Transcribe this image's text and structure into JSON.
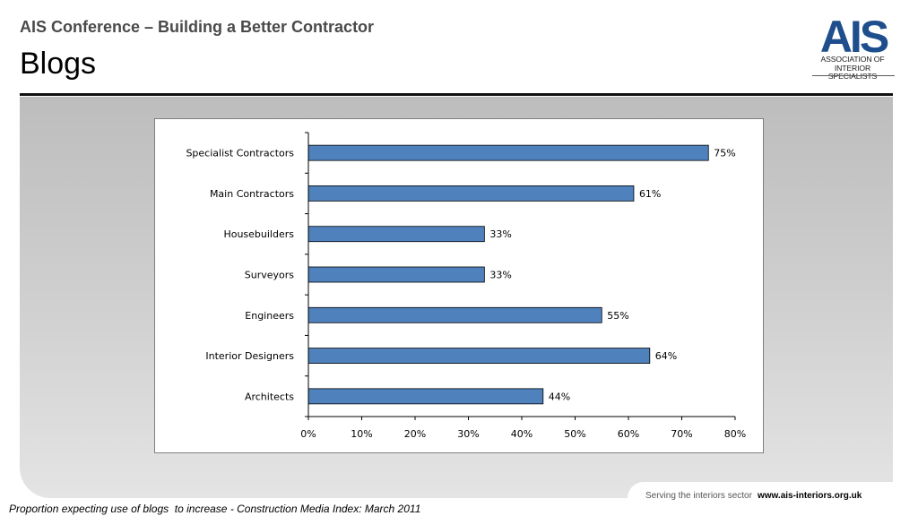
{
  "header": {
    "subtitle": "AIS Conference – Building a Better Contractor",
    "title": "Blogs"
  },
  "logo": {
    "mark": "AIS",
    "line1": "ASSOCIATION OF",
    "line2": "INTERIOR SPECIALISTS",
    "colors": {
      "blue": "#1f4e8c",
      "dark": "#1a1a1a"
    }
  },
  "footer": {
    "tagline": "Serving the interiors sector",
    "url": "www.ais-interiors.org.uk"
  },
  "caption": "Proportion expecting use of blogs  to increase - Construction Media Index: March 2011",
  "chart_data": {
    "type": "bar",
    "orientation": "horizontal",
    "categories": [
      "Specialist Contractors",
      "Main Contractors",
      "Housebuilders",
      "Surveyors",
      "Engineers",
      "Interior Designers",
      "Architects"
    ],
    "values": [
      75,
      61,
      33,
      33,
      55,
      64,
      44
    ],
    "value_labels": [
      "75%",
      "61%",
      "33%",
      "33%",
      "55%",
      "64%",
      "44%"
    ],
    "xlim": [
      0,
      80
    ],
    "xticks": [
      0,
      10,
      20,
      30,
      40,
      50,
      60,
      70,
      80
    ],
    "xtick_labels": [
      "0%",
      "10%",
      "20%",
      "30%",
      "40%",
      "50%",
      "60%",
      "70%",
      "80%"
    ],
    "grid": false,
    "legend": "none",
    "bar_color": "#4f81bd"
  }
}
